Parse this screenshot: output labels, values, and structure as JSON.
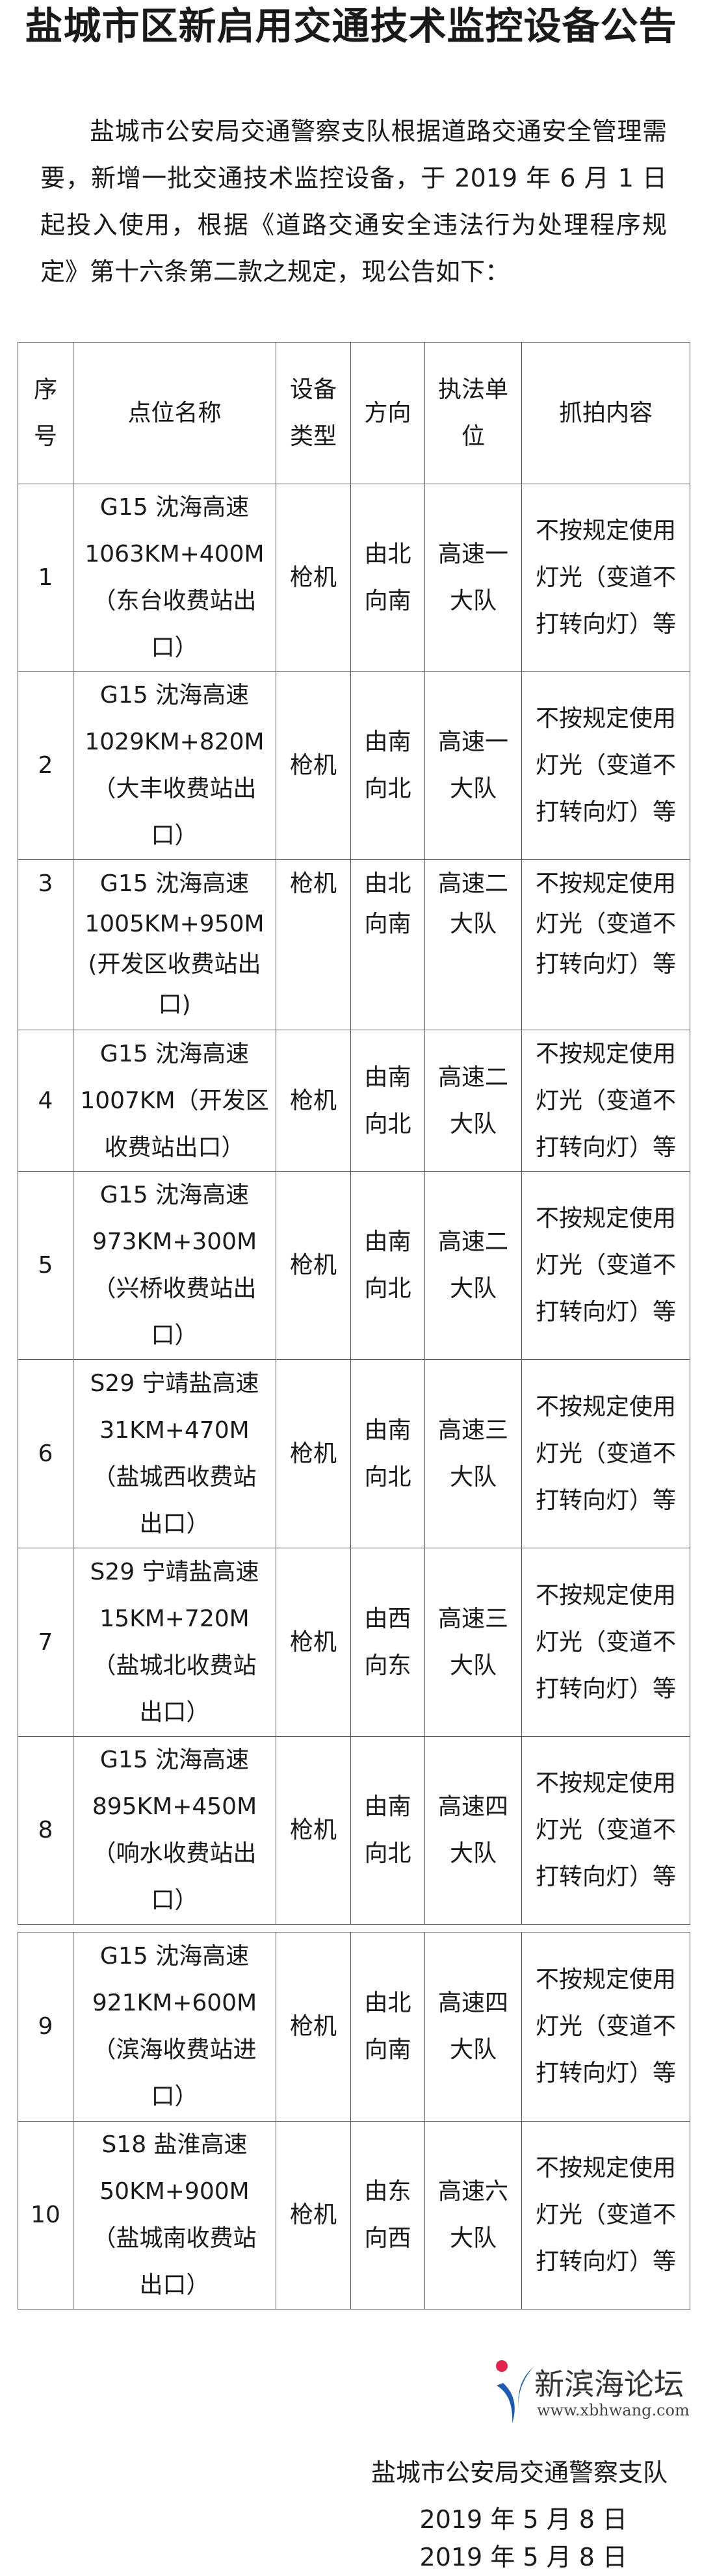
{
  "title": "盐城市区新启用交通技术监控设备公告",
  "intro": "盐城市公安局交通警察支队根据道路交通安全管理需要，新增一批交通技术监控设备，于 2019 年 6 月 1 日起投入使用，根据《道路交通安全违法行为处理程序规定》第十六条第二款之规定，现公告如下：",
  "table": {
    "headers": [
      [
        "序",
        "号"
      ],
      [
        "点位名称"
      ],
      [
        "设备",
        "类型"
      ],
      [
        "方向"
      ],
      [
        "执法单",
        "位"
      ],
      [
        "抓拍内容"
      ]
    ],
    "rows": [
      {
        "no": "1",
        "name": [
          "G15 沈海高速",
          "1063KM+400M",
          "（东台收费站出",
          "口）"
        ],
        "type": "枪机",
        "dir": [
          "由北",
          "向南"
        ],
        "unit": [
          "高速一",
          "大队"
        ],
        "content": [
          "不按规定使用",
          "灯光（变道不",
          "打转向灯）等"
        ]
      },
      {
        "no": "2",
        "name": [
          "G15 沈海高速",
          "1029KM+820M",
          "（大丰收费站出",
          "口）"
        ],
        "type": "枪机",
        "dir": [
          "由南",
          "向北"
        ],
        "unit": [
          "高速一",
          "大队"
        ],
        "content": [
          "不按规定使用",
          "灯光（变道不",
          "打转向灯）等"
        ]
      },
      {
        "no": "3",
        "name": [
          "G15 沈海高速",
          "1005KM+950M",
          "(开发区收费站出",
          "口)"
        ],
        "type": "枪机",
        "dir": [
          "由北",
          "向南"
        ],
        "unit": [
          "高速二",
          "大队"
        ],
        "content": [
          "不按规定使用",
          "灯光（变道不",
          "打转向灯）等"
        ]
      },
      {
        "no": "4",
        "name": [
          "G15 沈海高速",
          "1007KM（开发区",
          "收费站出口）"
        ],
        "type": "枪机",
        "dir": [
          "由南",
          "向北"
        ],
        "unit": [
          "高速二",
          "大队"
        ],
        "content": [
          "不按规定使用",
          "灯光（变道不",
          "打转向灯）等"
        ]
      },
      {
        "no": "5",
        "name": [
          "G15 沈海高速",
          "973KM+300M",
          "（兴桥收费站出",
          "口）"
        ],
        "type": "枪机",
        "dir": [
          "由南",
          "向北"
        ],
        "unit": [
          "高速二",
          "大队"
        ],
        "content": [
          "不按规定使用",
          "灯光（变道不",
          "打转向灯）等"
        ]
      },
      {
        "no": "6",
        "name": [
          "S29 宁靖盐高速",
          "31KM+470M",
          "（盐城西收费站",
          "出口）"
        ],
        "type": "枪机",
        "dir": [
          "由南",
          "向北"
        ],
        "unit": [
          "高速三",
          "大队"
        ],
        "content": [
          "不按规定使用",
          "灯光（变道不",
          "打转向灯）等"
        ]
      },
      {
        "no": "7",
        "name": [
          "S29 宁靖盐高速",
          "15KM+720M",
          "（盐城北收费站",
          "出口）"
        ],
        "type": "枪机",
        "dir": [
          "由西",
          "向东"
        ],
        "unit": [
          "高速三",
          "大队"
        ],
        "content": [
          "不按规定使用",
          "灯光（变道不",
          "打转向灯）等"
        ]
      },
      {
        "no": "8",
        "name": [
          "G15 沈海高速",
          "895KM+450M",
          "（响水收费站出",
          "口）"
        ],
        "type": "枪机",
        "dir": [
          "由南",
          "向北"
        ],
        "unit": [
          "高速四",
          "大队"
        ],
        "content": [
          "不按规定使用",
          "灯光（变道不",
          "打转向灯）等"
        ]
      },
      {
        "no": "9",
        "name": [
          "G15 沈海高速",
          "921KM+600M",
          "（滨海收费站进",
          "口）"
        ],
        "type": "枪机",
        "dir": [
          "由北",
          "向南"
        ],
        "unit": [
          "高速四",
          "大队"
        ],
        "content": [
          "不按规定使用",
          "灯光（变道不",
          "打转向灯）等"
        ]
      },
      {
        "no": "10",
        "name": [
          "S18 盐淮高速",
          "50KM+900M",
          "（盐城南收费站",
          "出口）"
        ],
        "type": "枪机",
        "dir": [
          "由东",
          "向西"
        ],
        "unit": [
          "高速六",
          "大队"
        ],
        "content": [
          "不按规定使用",
          "灯光（变道不",
          "打转向灯）等"
        ]
      }
    ]
  },
  "signature": {
    "org": "盐城市公安局交通警察支队",
    "date": "2019 年 5 月 8 日",
    "date_repeat": "2019 年 5 月 8 日"
  },
  "watermark": {
    "name": "新滨海论坛",
    "url": "www.xbhwang.com",
    "colors": {
      "dot": "#e5224a",
      "swoosh": "#1a5bb5"
    }
  }
}
